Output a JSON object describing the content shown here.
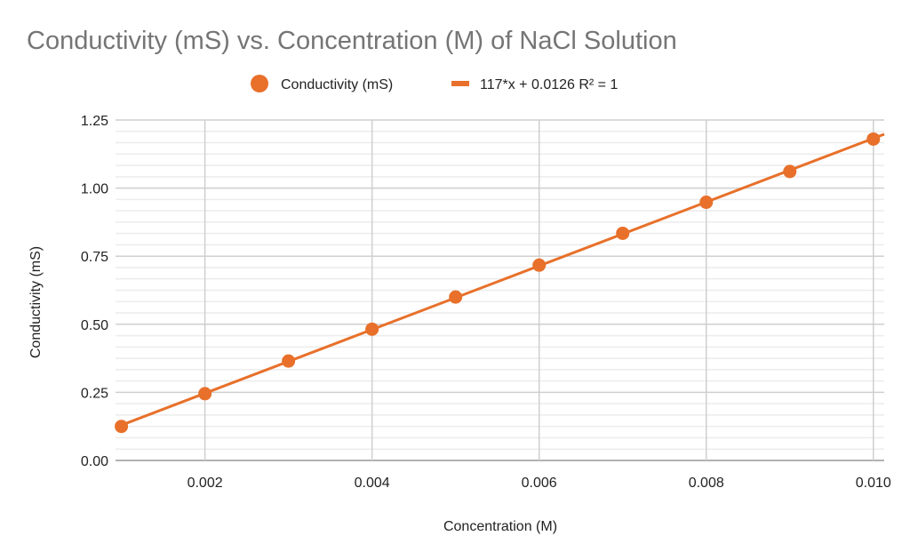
{
  "chart_data": {
    "type": "scatter",
    "title": "Conductivity (mS) vs. Concentration (M) of NaCl Solution",
    "xlabel": "Concentration (M)",
    "ylabel": "Conductivity (mS)",
    "xlim": [
      0.00093,
      0.01013
    ],
    "ylim": [
      0,
      1.25
    ],
    "x_ticks": [
      "0.002",
      "0.004",
      "0.006",
      "0.008",
      "0.010"
    ],
    "y_ticks": [
      "0.00",
      "0.25",
      "0.50",
      "0.75",
      "1.00",
      "1.25"
    ],
    "grid": true,
    "legend_position": "top",
    "series": [
      {
        "name": "Conductivity (mS)",
        "color": "#e8702a",
        "x": [
          0.001,
          0.002,
          0.003,
          0.004,
          0.005,
          0.006,
          0.007,
          0.008,
          0.009,
          0.01
        ],
        "y": [
          0.125,
          0.245,
          0.365,
          0.482,
          0.6,
          0.717,
          0.834,
          0.948,
          1.061,
          1.18
        ]
      }
    ],
    "trendline": {
      "name": "117*x + 0.0126 R² = 1",
      "slope": 117,
      "intercept": 0.0126,
      "color": "#e8702a"
    }
  }
}
